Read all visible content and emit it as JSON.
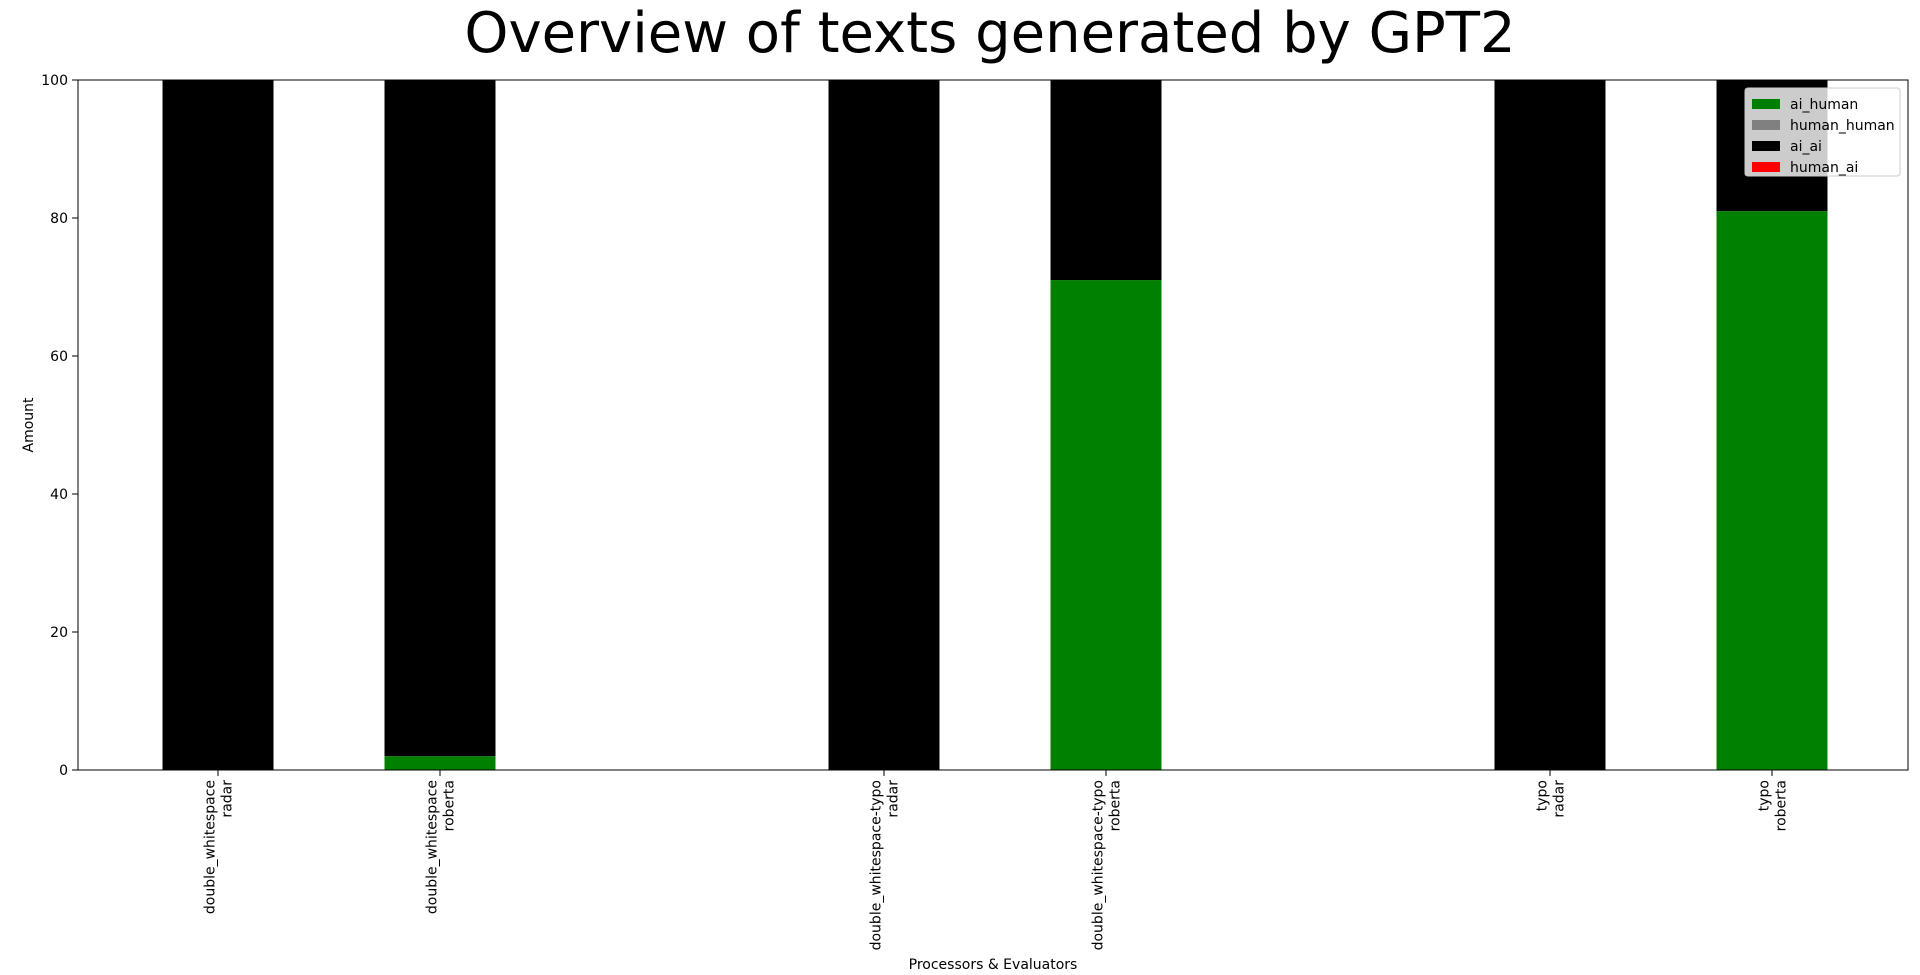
{
  "chart_data": {
    "type": "bar",
    "stacked": true,
    "title": "Overview of texts generated by GPT2",
    "xlabel": "Processors & Evaluators",
    "ylabel": "Amount",
    "ylim": [
      0,
      100
    ],
    "yticks": [
      0,
      20,
      40,
      60,
      80,
      100
    ],
    "categories": [
      [
        "double_whitespace",
        "radar"
      ],
      [
        "double_whitespace",
        "roberta"
      ],
      [
        "double_whitespace-typo",
        "radar"
      ],
      [
        "double_whitespace-typo",
        "roberta"
      ],
      [
        "typo",
        "radar"
      ],
      [
        "typo",
        "roberta"
      ]
    ],
    "category_slots": [
      0,
      1,
      3,
      4,
      6,
      7
    ],
    "slot_count": 8,
    "series": [
      {
        "name": "ai_human",
        "color": "#008000",
        "values": [
          0,
          2,
          0,
          71,
          0,
          81
        ]
      },
      {
        "name": "human_human",
        "color": "#808080",
        "values": [
          0,
          0,
          0,
          0,
          0,
          0
        ]
      },
      {
        "name": "ai_ai",
        "color": "#000000",
        "values": [
          100,
          98,
          100,
          29,
          100,
          19
        ]
      },
      {
        "name": "human_ai",
        "color": "#ff0000",
        "values": [
          0,
          0,
          0,
          0,
          0,
          0
        ]
      }
    ],
    "legend_position": "top-right",
    "grid": false
  }
}
